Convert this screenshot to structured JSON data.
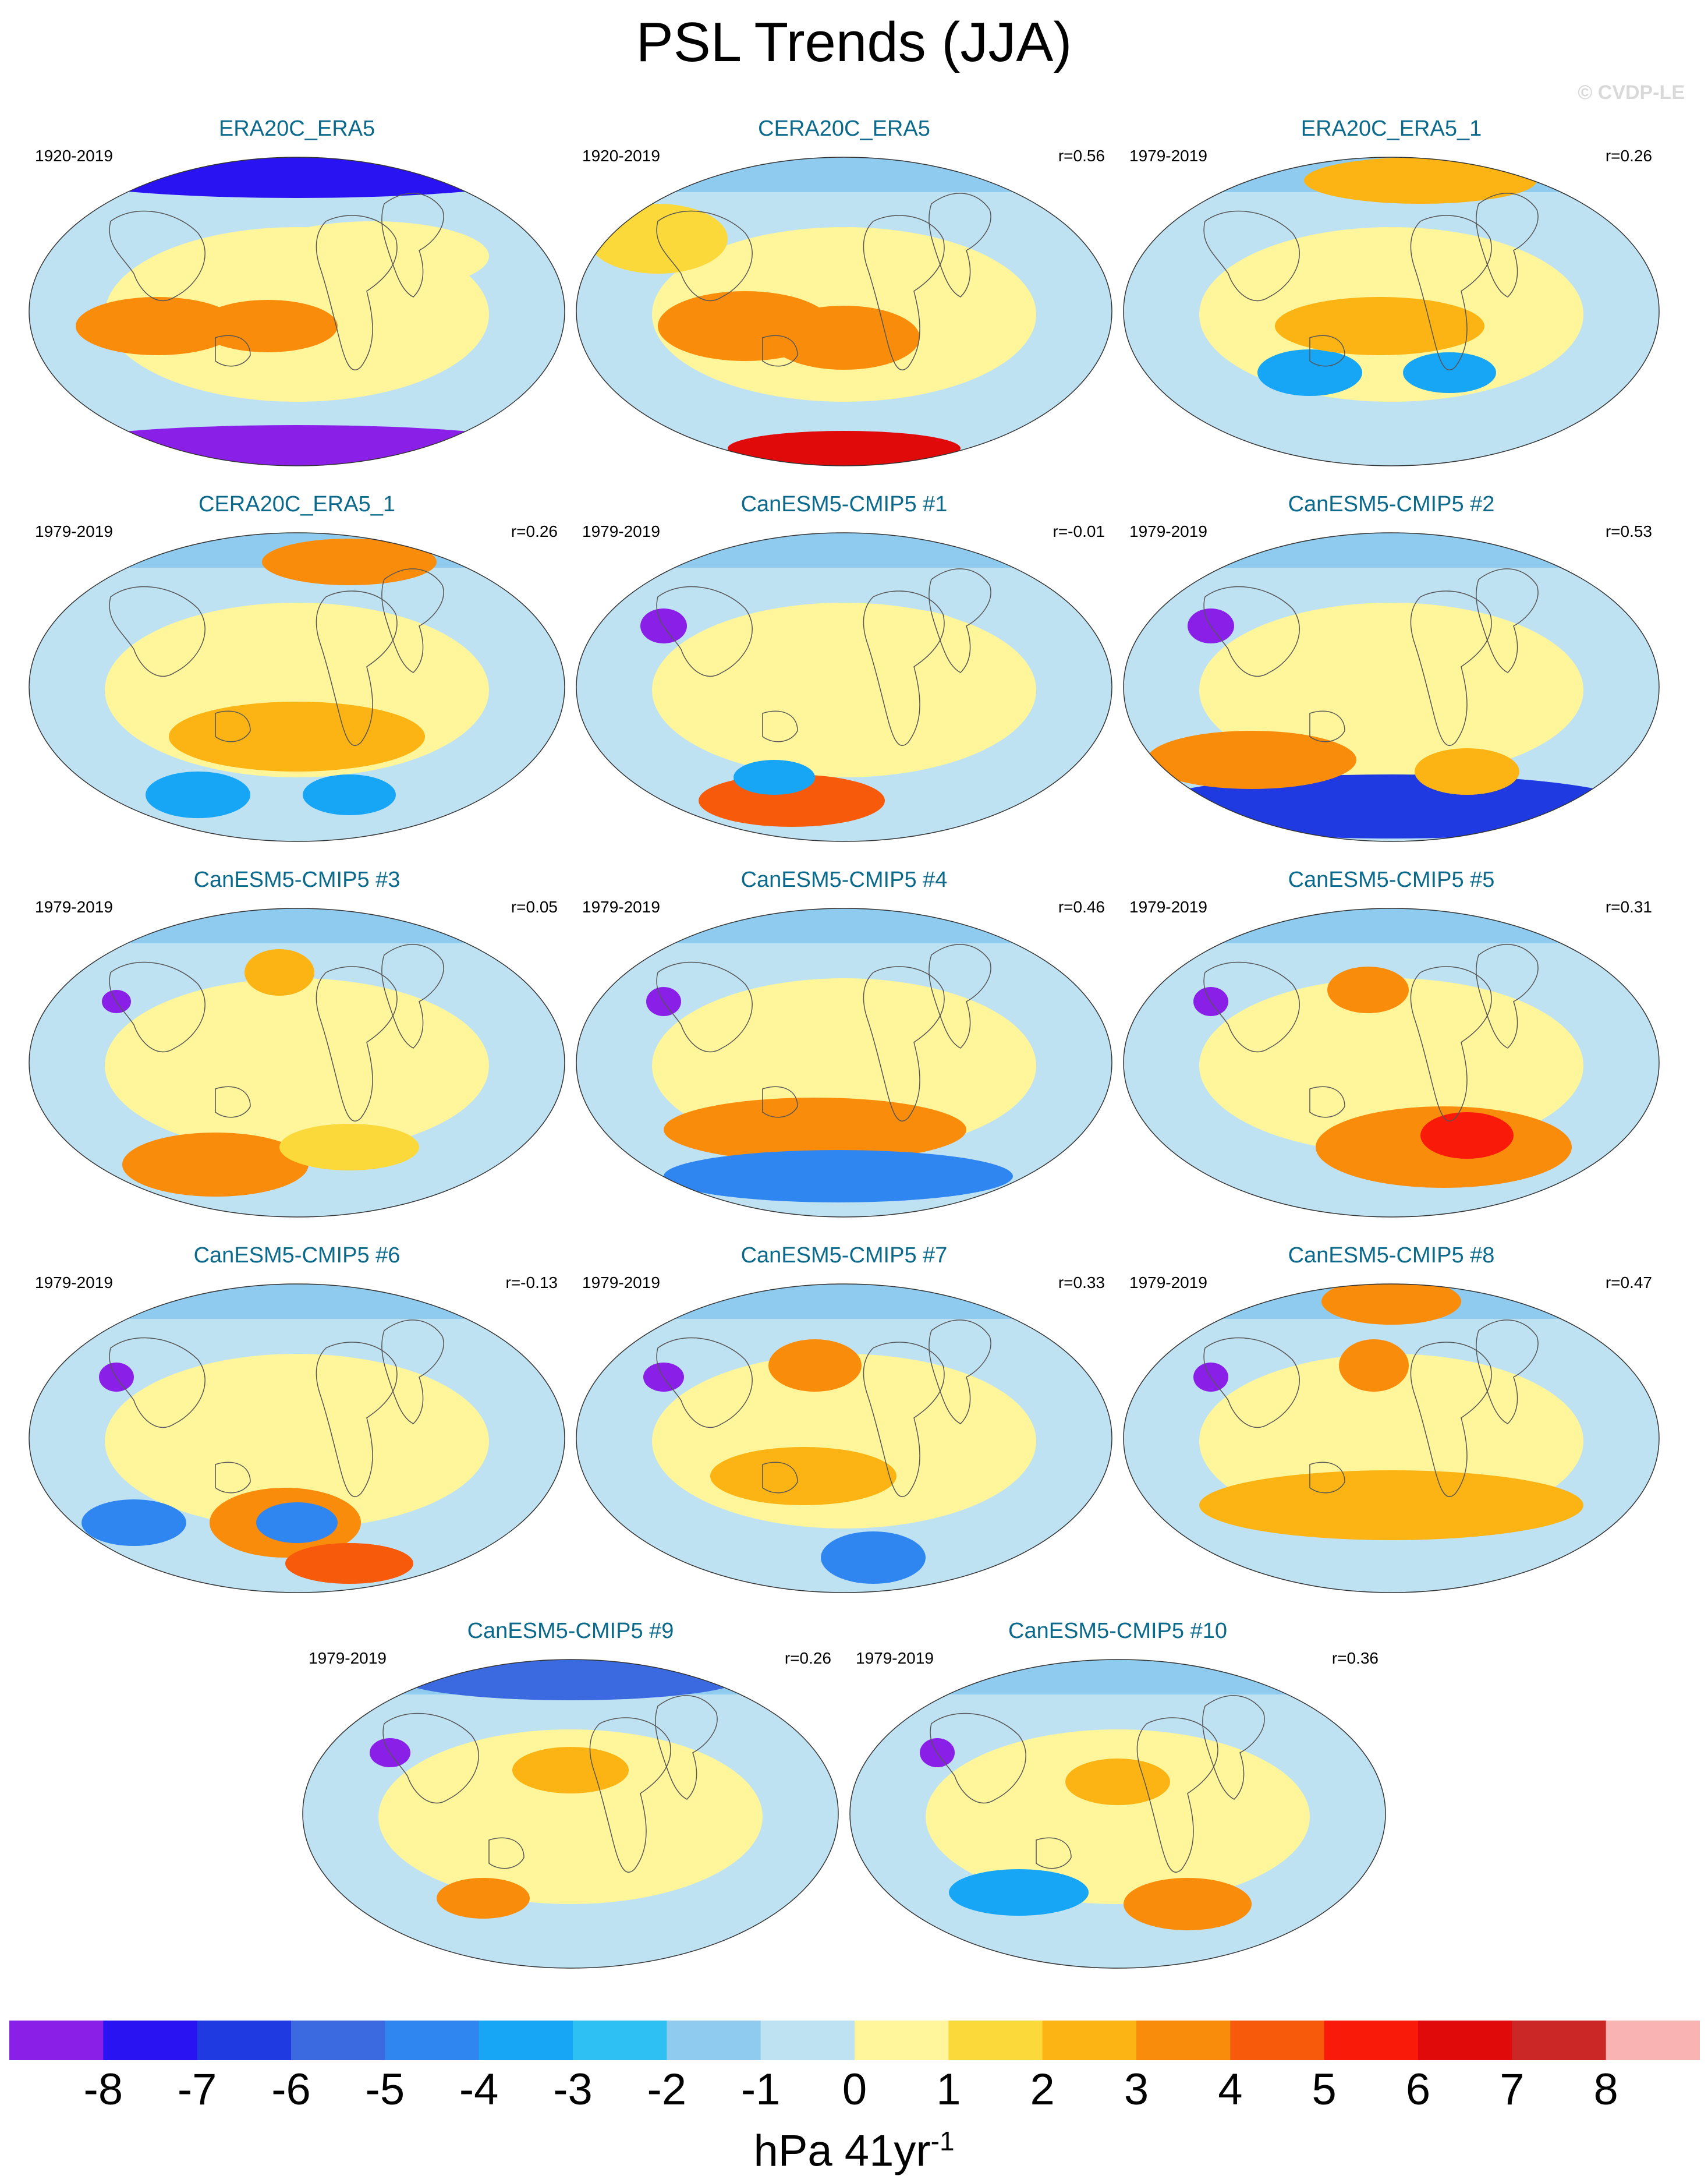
{
  "title": "PSL Trends (JJA)",
  "credit": "© CVDP-LE",
  "panels": [
    {
      "title": "ERA20C_ERA5",
      "years": "1920-2019",
      "corr": ""
    },
    {
      "title": "CERA20C_ERA5",
      "years": "1920-2019",
      "corr": "r=0.56"
    },
    {
      "title": "ERA20C_ERA5_1",
      "years": "1979-2019",
      "corr": "r=0.26"
    },
    {
      "title": "CERA20C_ERA5_1",
      "years": "1979-2019",
      "corr": "r=0.26"
    },
    {
      "title": "CanESM5-CMIP5 #1",
      "years": "1979-2019",
      "corr": "r=-0.01"
    },
    {
      "title": "CanESM5-CMIP5 #2",
      "years": "1979-2019",
      "corr": "r=0.53"
    },
    {
      "title": "CanESM5-CMIP5 #3",
      "years": "1979-2019",
      "corr": "r=0.05"
    },
    {
      "title": "CanESM5-CMIP5 #4",
      "years": "1979-2019",
      "corr": "r=0.46"
    },
    {
      "title": "CanESM5-CMIP5 #5",
      "years": "1979-2019",
      "corr": "r=0.31"
    },
    {
      "title": "CanESM5-CMIP5 #6",
      "years": "1979-2019",
      "corr": "r=-0.13"
    },
    {
      "title": "CanESM5-CMIP5 #7",
      "years": "1979-2019",
      "corr": "r=0.33"
    },
    {
      "title": "CanESM5-CMIP5 #8",
      "years": "1979-2019",
      "corr": "r=0.47"
    },
    {
      "title": "CanESM5-CMIP5 #9",
      "years": "1979-2019",
      "corr": "r=0.26"
    },
    {
      "title": "CanESM5-CMIP5 #10",
      "years": "1979-2019",
      "corr": "r=0.36"
    }
  ],
  "colorbar": {
    "ticks": [
      "-8",
      "-7",
      "-6",
      "-5",
      "-4",
      "-3",
      "-2",
      "-1",
      "0",
      "1",
      "2",
      "3",
      "4",
      "5",
      "6",
      "7",
      "8"
    ],
    "colors": [
      "#8a1fe8",
      "#2a13f2",
      "#1f3ae0",
      "#3b6ae0",
      "#2f86f0",
      "#17a6f5",
      "#2fc0f3",
      "#8ecbee",
      "#bfe2f3",
      "#fff59a",
      "#fcd93a",
      "#fbb414",
      "#fa8c0c",
      "#f65a0a",
      "#fa1a0a",
      "#e00a0a",
      "#cc2727",
      "#fab3b3"
    ],
    "units": "hPa 41yr",
    "units_sup": "-1"
  }
}
